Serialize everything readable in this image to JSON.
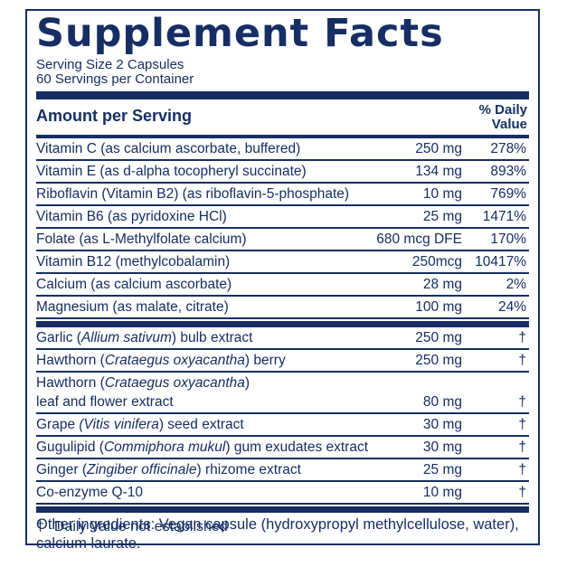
{
  "colors": {
    "navy": "#162e63",
    "background": "#ffffff"
  },
  "header": {
    "title": "Supplement Facts",
    "serving_size": "Serving Size 2 Capsules",
    "servings_per_container": "60 Servings per Container"
  },
  "table": {
    "amount_header": "Amount per Serving",
    "dv_header_line1": "% Daily",
    "dv_header_line2": "Value",
    "rows": [
      {
        "prefix": "Vitamin C (as calcium ascorbate, buffered)",
        "italic": "",
        "suffix": "",
        "amount": "250 mg",
        "dv": "278%"
      },
      {
        "prefix": "Vitamin E (as d-alpha tocopheryl succinate)",
        "italic": "",
        "suffix": "",
        "amount": "134 mg",
        "dv": "893%"
      },
      {
        "prefix": "Riboflavin (Vitamin B2) (as riboflavin-5-phosphate)",
        "italic": "",
        "suffix": "",
        "amount": "10 mg",
        "dv": "769%"
      },
      {
        "prefix": "Vitamin B6 (as pyridoxine HCl)",
        "italic": "",
        "suffix": "",
        "amount": "25 mg",
        "dv": "1471%"
      },
      {
        "prefix": "Folate (as L-Methylfolate calcium)",
        "italic": "",
        "suffix": "",
        "amount": "680 mcg DFE",
        "dv": "170%"
      },
      {
        "prefix": "Vitamin B12 (methylcobalamin)",
        "italic": "",
        "suffix": "",
        "amount": "250mcg",
        "dv": "10417%"
      },
      {
        "prefix": "Calcium (as calcium ascorbate)",
        "italic": "",
        "suffix": "",
        "amount": "28 mg",
        "dv": "2%"
      },
      {
        "prefix": "Magnesium (as malate, citrate)",
        "italic": "",
        "suffix": "",
        "amount": "100 mg",
        "dv": "24%"
      }
    ],
    "botanical_rows": [
      {
        "prefix": "Garlic (",
        "italic": "Allium sativum",
        "suffix": ") bulb extract",
        "amount": "250 mg",
        "dv": "†",
        "no_border": false
      },
      {
        "prefix": "Hawthorn (",
        "italic": "Crataegus oxyacantha",
        "suffix": ") berry",
        "amount": "250 mg",
        "dv": "†",
        "no_border": false
      },
      {
        "prefix": "Hawthorn (",
        "italic": "Crataegus oxyacantha",
        "suffix": ")",
        "amount": "",
        "dv": "",
        "no_border": true
      },
      {
        "prefix": "leaf and flower extract",
        "italic": "",
        "suffix": "",
        "amount": "80 mg",
        "dv": "†",
        "no_border": false
      },
      {
        "prefix": "Grape ",
        "italic": "(Vitis vinifera",
        "suffix": ") seed extract",
        "amount": "30 mg",
        "dv": "†",
        "no_border": false
      },
      {
        "prefix": "Gugulipid (",
        "italic": "Commiphora mukul",
        "suffix": ") gum exudates extract",
        "amount": "30 mg",
        "dv": "†",
        "no_border": false
      },
      {
        "prefix": "Ginger (",
        "italic": "Zingiber officinale",
        "suffix": ") rhizome extract",
        "amount": "25 mg",
        "dv": "†",
        "no_border": false
      },
      {
        "prefix": "Co-enzyme Q-10",
        "italic": "",
        "suffix": "",
        "amount": "10 mg",
        "dv": "†",
        "no_border": false
      }
    ],
    "footnote_symbol": "†",
    "footnote_text": "Daily Value not established"
  },
  "other_ingredients": {
    "line1": "Other ingredients: Vegan capsule (hydroxypropyl methylcellulose, water),",
    "line2": "calcium laurate."
  }
}
